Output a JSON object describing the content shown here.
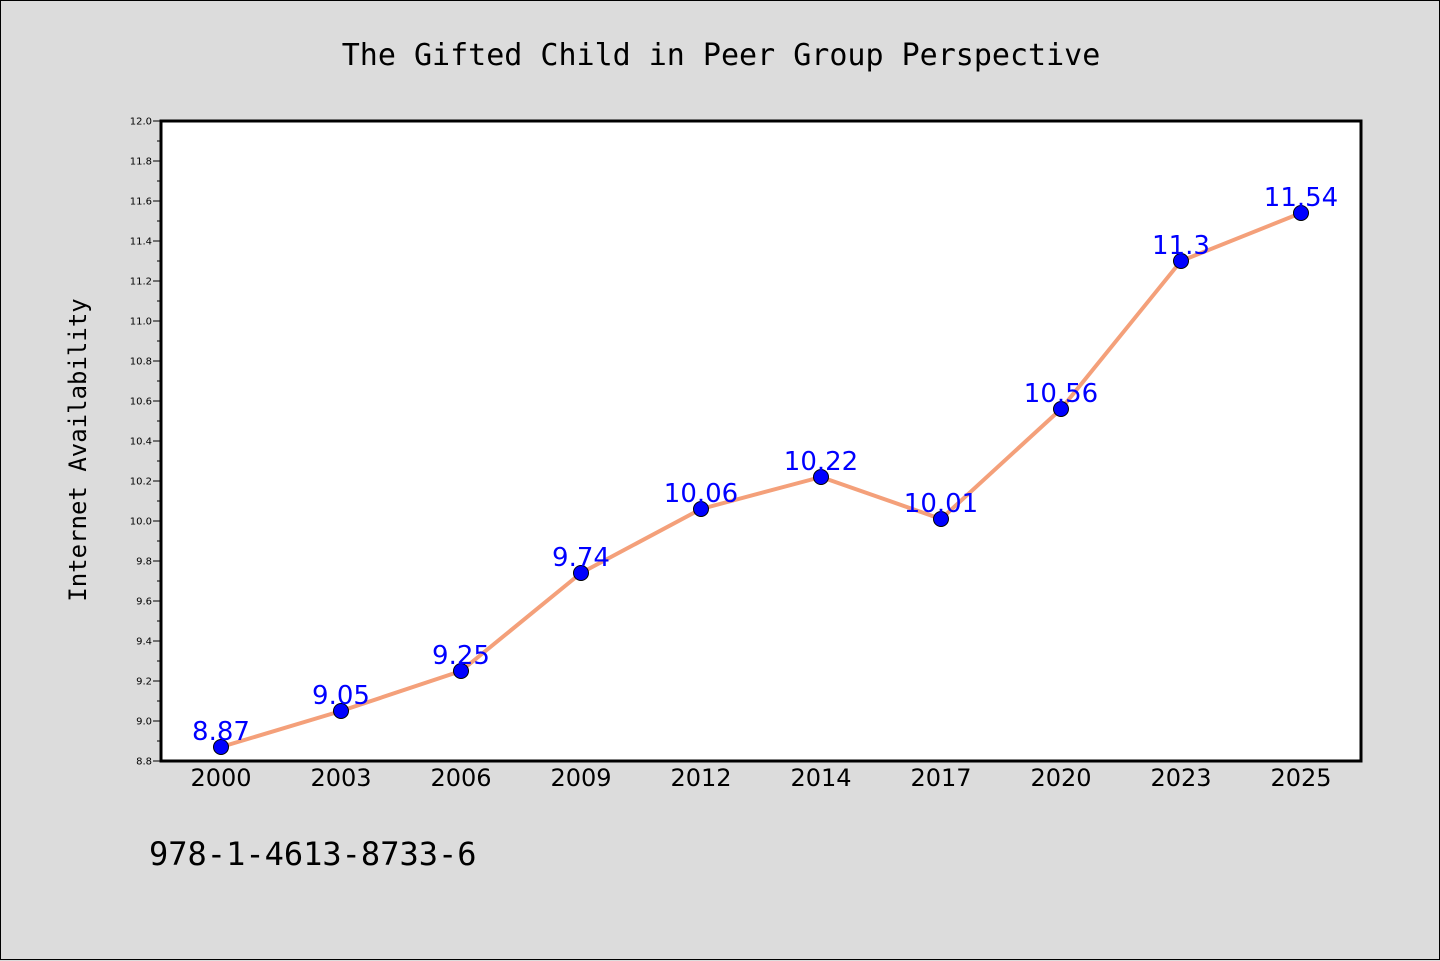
{
  "chart_data": {
    "type": "line",
    "title": "The Gifted Child in Peer Group Perspective",
    "xlabel": "",
    "ylabel": "Internet Availability",
    "categories": [
      "2000",
      "2003",
      "2006",
      "2009",
      "2012",
      "2014",
      "2017",
      "2020",
      "2023",
      "2025"
    ],
    "series": [
      {
        "values": [
          8.87,
          9.05,
          9.25,
          9.74,
          10.06,
          10.22,
          10.01,
          10.56,
          11.3,
          11.54
        ],
        "data_labels": [
          "8.87",
          "9.05",
          "9.25",
          "9.74",
          "10.06",
          "10.22",
          "10.01",
          "10.56",
          "11.3",
          "11.54"
        ],
        "line_color": "#f4a07a",
        "marker_color": "#0000ff"
      }
    ],
    "ylim": [
      8.8,
      12.0
    ],
    "y_ticks": [
      "8.8",
      "9.0",
      "9.2",
      "9.4",
      "9.6",
      "9.8",
      "10.0",
      "10.2",
      "10.4",
      "10.6",
      "10.8",
      "11.0",
      "11.2",
      "11.4",
      "11.6",
      "11.8",
      "12.0"
    ],
    "grid": false,
    "legend": "none",
    "plot_background": "#ffffff",
    "page_background": "#dcdcdc"
  },
  "footer": {
    "isbn": "978-1-4613-8733-6"
  }
}
